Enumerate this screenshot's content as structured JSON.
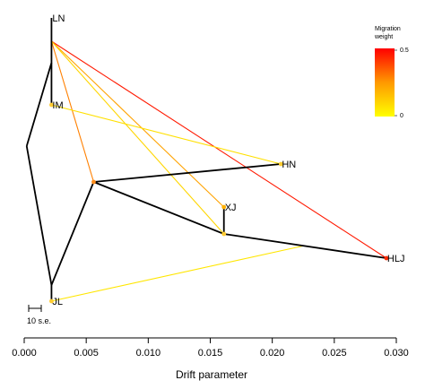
{
  "chart_data": {
    "type": "tree",
    "xlabel": "Drift parameter",
    "x_ticks": [
      "0.000",
      "0.005",
      "0.010",
      "0.015",
      "0.020",
      "0.025",
      "0.030"
    ],
    "xlim": [
      0.0,
      0.03
    ],
    "tips": [
      {
        "name": "LN",
        "drift": 0.0022
      },
      {
        "name": "IM",
        "drift": 0.0022
      },
      {
        "name": "HN",
        "drift": 0.0207
      },
      {
        "name": "XJ",
        "drift": 0.0161
      },
      {
        "name": "HLJ",
        "drift": 0.0292
      },
      {
        "name": "JL",
        "drift": 0.0022
      }
    ],
    "edges": [
      {
        "from": "root",
        "to": "A"
      },
      {
        "from": "root",
        "to": "B"
      },
      {
        "from": "A",
        "to": "LN"
      },
      {
        "from": "A",
        "to": "IM"
      },
      {
        "from": "B",
        "to": "JL"
      },
      {
        "from": "B",
        "to": "C"
      },
      {
        "from": "C",
        "to": "HN"
      },
      {
        "from": "C",
        "to": "D"
      },
      {
        "from": "D",
        "to": "XJ"
      },
      {
        "from": "D",
        "to": "HLJ"
      }
    ],
    "migrations": [
      {
        "from": "LN",
        "to": "HLJ",
        "weight": 0.45
      },
      {
        "from": "LN",
        "to": "C",
        "weight": 0.25
      },
      {
        "from": "LN",
        "to": "XJ",
        "weight": 0.18
      },
      {
        "from": "LN",
        "to": "D",
        "weight": 0.08
      },
      {
        "from": "IM",
        "to": "HN",
        "weight": 0.06
      },
      {
        "from": "JL",
        "to": "D-HLJ",
        "weight": 0.05
      }
    ],
    "legend": {
      "title": "Migration weight",
      "max_label": "0.5",
      "min_label": "0",
      "colors": [
        "#ffff00",
        "#ff8c00",
        "#ff0000"
      ]
    },
    "scale_bar_label": "10 s.e."
  }
}
